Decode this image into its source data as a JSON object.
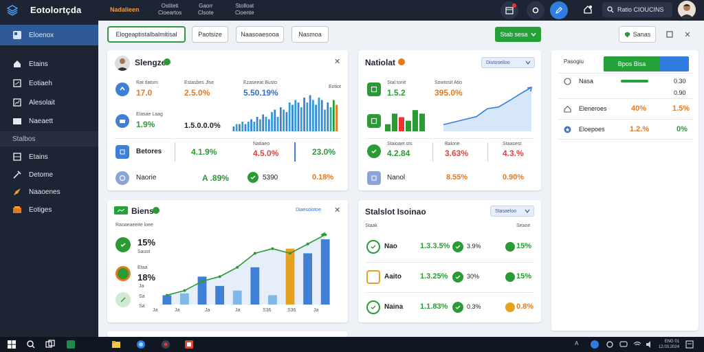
{
  "header": {
    "app_title": "Eotolortçda",
    "nav": [
      {
        "label": "Nadalieen",
        "sub": ""
      },
      {
        "label": "Ostiteti",
        "sub": "Cioeartos"
      },
      {
        "label": "Gaorr",
        "sub": "Clsote"
      },
      {
        "label": "Stolloat",
        "sub": "Cioente"
      }
    ],
    "search_label": "Ratio CIOUCINS"
  },
  "sidebar": {
    "items": [
      {
        "label": "Eloenox",
        "icon": "dashboard-icon"
      },
      {
        "label": "Etains",
        "icon": "home-icon"
      },
      {
        "label": "Eotiaeh",
        "icon": "document-icon"
      },
      {
        "label": "Alesolait",
        "icon": "chart-icon"
      },
      {
        "label": "Naeaett",
        "icon": "folder-icon"
      },
      {
        "label": "Stalbos",
        "icon": ""
      },
      {
        "label": "Etains",
        "icon": "grid-icon"
      },
      {
        "label": "Detome",
        "icon": "tool-icon"
      },
      {
        "label": "Naaoenes",
        "icon": "rocket-icon"
      },
      {
        "label": "Eotiges",
        "icon": "box-icon"
      }
    ]
  },
  "toolbar": {
    "filters": [
      "Elogeaptistalbalmitisal",
      "Paotsize",
      "Naasoaesooa",
      "Nasmoa"
    ],
    "primary_button": "Stab sesa",
    "secondary_button": "Sanas"
  },
  "panel_stats": {
    "title": "Slengze",
    "rows": [
      {
        "label": "Rat tlatom",
        "value": "17.0"
      },
      {
        "label": "Estasbes Jlse",
        "value": "2.5.0%"
      },
      {
        "label": "Ezaseeat Busto",
        "value": "5.50.19%"
      },
      {
        "label": "Eotiot",
        "value": ""
      }
    ],
    "row2": {
      "label": "Eiasae Laag",
      "value": "1.9%",
      "value2": "1.5.0.0.0%"
    },
    "row3": {
      "label": "Betores",
      "v1": "4.1.9%",
      "mid_label": "Natiaeo",
      "v2": "4.5.0%",
      "v3": "23.0%"
    },
    "row4": {
      "label": "Naorie",
      "v1": "A .89%",
      "v2": "5390",
      "v3": "0.18%"
    }
  },
  "panel_market": {
    "title": "Natiolat",
    "dropdown": "Diutoseiloo",
    "rows": [
      {
        "label": "Stal tonit",
        "value": "1.5.2"
      },
      {
        "label": "Sowtosit Atio",
        "value": "395.0%"
      }
    ],
    "row2": [
      {
        "label": "Staioaet sts",
        "value": "4.2.84"
      },
      {
        "label": "Balorie",
        "value": "3.63%"
      },
      {
        "label": "Staasest",
        "value": "4.3.%"
      }
    ],
    "row3": [
      {
        "label": "Nanol",
        "value": "8.55%"
      },
      {
        "label": "",
        "value": "0.90%"
      }
    ]
  },
  "panel_right": {
    "header_label": "Pasogiu",
    "tab_active": "Bpos Bisa",
    "rows": [
      {
        "label": "Nasa",
        "value": "0.30",
        "value2": "0.90"
      },
      {
        "label": "Eleneroes",
        "value": "40%",
        "value2": "1.5%"
      },
      {
        "label": "Eloepoes",
        "value": "1.2.%",
        "value2": "0%"
      }
    ]
  },
  "panel_trend": {
    "title": "Biens",
    "link": "Diaesoiotoe",
    "caption": "Raoaeaeeite loee",
    "stats": [
      {
        "value": "15%",
        "label": "Sauot"
      },
      {
        "value": "18%",
        "label": "Etaa"
      }
    ],
    "x_ticks": [
      "Ja",
      "Ja",
      "Ja",
      "Ja",
      "S36",
      "S36",
      "Ja"
    ],
    "y_ticks": [
      "Ja",
      "Sa",
      "Sa"
    ]
  },
  "panel_table": {
    "title": "Stalslot Isoinao",
    "dropdown": "Stasaeloo",
    "col_left": "Staak",
    "col_right": "Seaoe",
    "rows": [
      {
        "name": "Nao",
        "v1": "1.3.3.5%",
        "v2": "3.9%",
        "v3": "15%"
      },
      {
        "name": "Aaito",
        "v1": "1.3.25%",
        "v2": "30%",
        "v3": "15%"
      },
      {
        "name": "Naina",
        "v1": "1.1.83%",
        "v2": "0.3%",
        "v3": "0.8%"
      }
    ]
  },
  "taskbar": {
    "clock_time": "ENG 01",
    "clock_date": "12.03.2024"
  },
  "colors": {
    "accent_blue": "#2f7de1",
    "accent_green": "#24a139",
    "accent_orange": "#e6781e",
    "sidebar_bg": "#1d2433"
  },
  "chart_data": [
    {
      "type": "bar",
      "title": "",
      "categories": [
        "1",
        "2",
        "3",
        "4",
        "5",
        "6",
        "7",
        "8",
        "9",
        "10",
        "11",
        "12",
        "13",
        "14",
        "15",
        "16",
        "17",
        "18",
        "19",
        "20",
        "21",
        "22",
        "23",
        "24",
        "25",
        "26",
        "27",
        "28",
        "29",
        "30",
        "31",
        "32",
        "33",
        "34",
        "35",
        "36"
      ],
      "values": [
        2,
        3,
        3,
        4,
        3,
        4,
        5,
        4,
        6,
        5,
        7,
        6,
        5,
        8,
        9,
        6,
        10,
        9,
        8,
        12,
        11,
        13,
        12,
        10,
        14,
        12,
        15,
        13,
        11,
        14,
        13,
        9,
        12,
        10,
        13,
        11
      ],
      "ylim": [
        0,
        16
      ]
    },
    {
      "type": "bar",
      "title": "",
      "categories": [
        "1",
        "2",
        "3",
        "4",
        "5",
        "6"
      ],
      "values": [
        2,
        5,
        4,
        3,
        6,
        5
      ],
      "ylim": [
        0,
        7
      ]
    },
    {
      "type": "area",
      "title": "",
      "x": [
        1,
        2,
        3,
        4,
        5,
        6,
        7,
        8,
        9
      ],
      "values": [
        1,
        1.5,
        2,
        2.5,
        4,
        4.3,
        5.5,
        6.8,
        8
      ],
      "ylim": [
        0,
        8
      ]
    },
    {
      "type": "bar",
      "title": "",
      "categories": [
        "1",
        "2",
        "3",
        "4",
        "5",
        "6",
        "7",
        "8",
        "9",
        "10"
      ],
      "values": [
        1,
        1.2,
        3,
        2,
        1.5,
        4,
        1,
        6,
        5.5,
        7
      ],
      "series_line": [
        1,
        1.5,
        2.5,
        3,
        4,
        5.5,
        6,
        5.5,
        6.5,
        7.5
      ],
      "ylim": [
        0,
        9
      ]
    }
  ]
}
